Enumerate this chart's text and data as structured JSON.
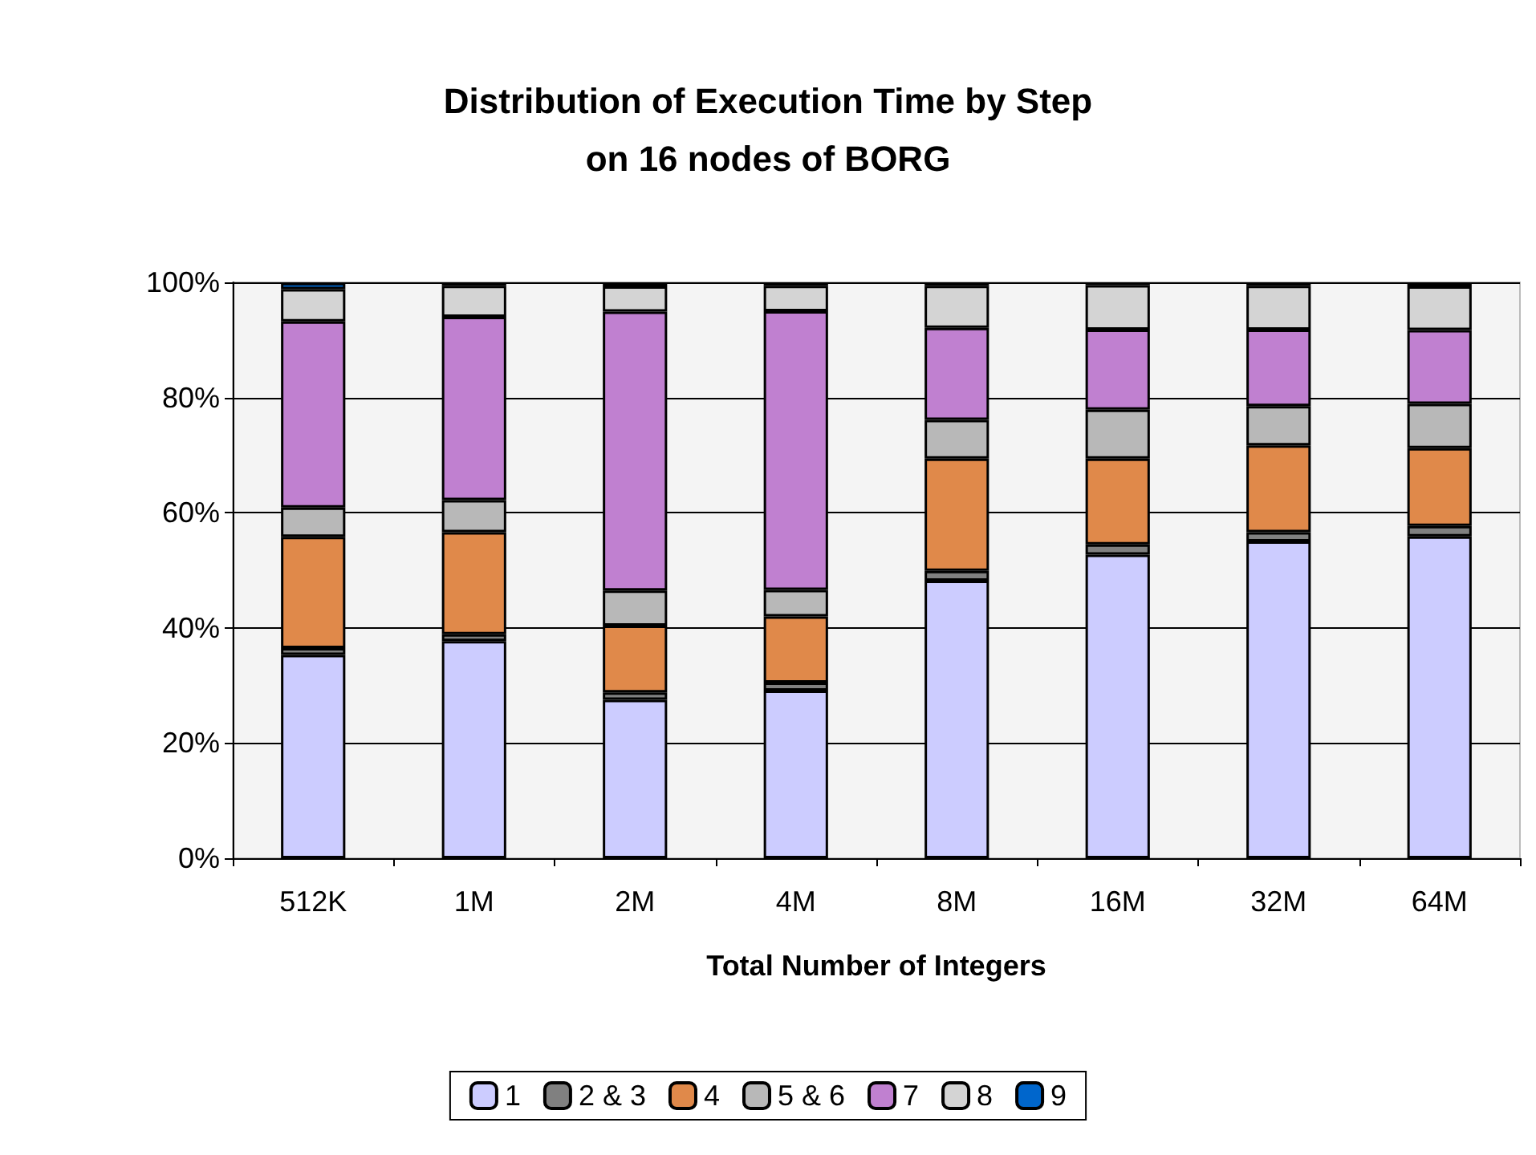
{
  "chart_data": {
    "type": "bar",
    "stacked": true,
    "title": "Distribution of Execution Time by Step\non 16 nodes of BORG",
    "xlabel": "Total Number of Integers",
    "categories": [
      "512K",
      "1M",
      "2M",
      "4M",
      "8M",
      "16M",
      "32M",
      "64M"
    ],
    "ylim": [
      0,
      100
    ],
    "yticks": [
      {
        "value": 0,
        "label": "0%"
      },
      {
        "value": 20,
        "label": "20%"
      },
      {
        "value": 40,
        "label": "40%"
      },
      {
        "value": 60,
        "label": "60%"
      },
      {
        "value": 80,
        "label": "80%"
      },
      {
        "value": 100,
        "label": "100%"
      }
    ],
    "grid": "y",
    "legend": "bottom",
    "series": [
      {
        "name": "1",
        "color": "#ccccff",
        "values": [
          35.3,
          37.7,
          27.5,
          29.1,
          48.2,
          52.7,
          55.0,
          55.9
        ]
      },
      {
        "name": "2 & 3",
        "color": "#808080",
        "values": [
          1.2,
          1.2,
          1.3,
          1.4,
          1.7,
          1.8,
          1.6,
          1.8
        ]
      },
      {
        "name": "4",
        "color": "#e0894a",
        "values": [
          19.3,
          17.7,
          11.6,
          11.5,
          19.5,
          14.9,
          15.1,
          13.5
        ]
      },
      {
        "name": "5 & 6",
        "color": "#b8b8b8",
        "values": [
          5.1,
          5.6,
          6.1,
          4.6,
          6.7,
          8.5,
          6.8,
          7.7
        ]
      },
      {
        "name": "7",
        "color": "#c080d0",
        "values": [
          32.3,
          31.8,
          48.4,
          48.4,
          16.0,
          13.9,
          13.3,
          12.8
        ]
      },
      {
        "name": "8",
        "color": "#d4d4d4",
        "values": [
          5.6,
          5.4,
          4.4,
          4.4,
          7.3,
          7.7,
          7.6,
          7.6
        ]
      },
      {
        "name": "9",
        "color": "#0066cc",
        "values": [
          1.1,
          0.6,
          0.7,
          0.6,
          0.6,
          0.5,
          0.6,
          0.7
        ]
      }
    ]
  }
}
